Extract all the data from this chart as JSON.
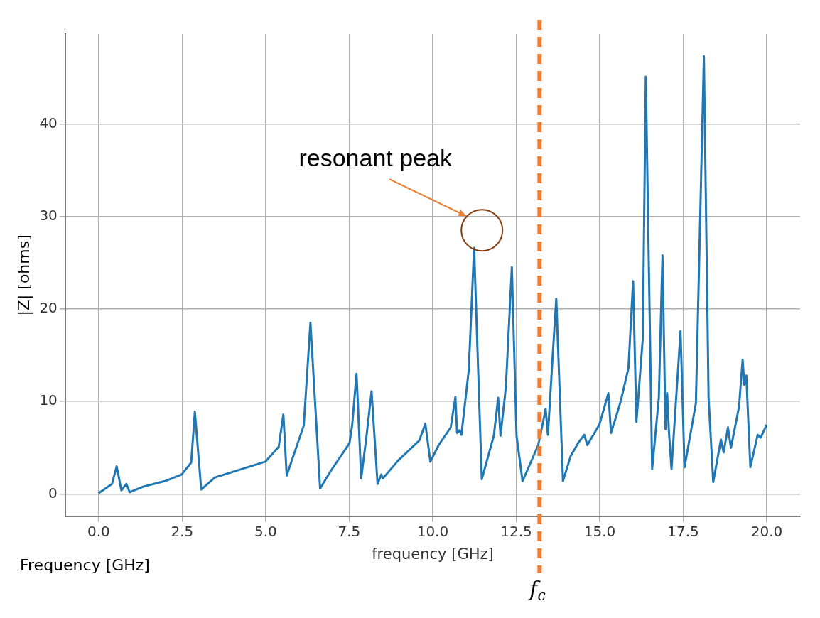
{
  "chart_data": {
    "type": "line",
    "xlabel": "frequency [GHz]",
    "ylabel": "|Z| [ohms]",
    "xlim": [
      -1.0,
      21.0
    ],
    "ylim": [
      -2.4,
      49.7
    ],
    "xticks": [
      {
        "value": 0,
        "label": "0.0"
      },
      {
        "value": 2.5,
        "label": "2.5"
      },
      {
        "value": 5,
        "label": "5.0"
      },
      {
        "value": 7.5,
        "label": "7.5"
      },
      {
        "value": 10,
        "label": "10.0"
      },
      {
        "value": 12.5,
        "label": "12.5"
      },
      {
        "value": 15,
        "label": "15.0"
      },
      {
        "value": 17.5,
        "label": "17.5"
      },
      {
        "value": 20,
        "label": "20.0"
      }
    ],
    "yticks": [
      0,
      10,
      20,
      30,
      40
    ],
    "grid": true,
    "legend": false,
    "marker": "none",
    "line_style": "solid",
    "series": [
      {
        "color": "#1f77b4",
        "x": [
          0.0,
          0.4,
          0.54,
          0.68,
          0.83,
          0.93,
          1.33,
          1.98,
          2.48,
          2.77,
          2.88,
          3.07,
          3.48,
          4.99,
          5.39,
          5.53,
          5.63,
          5.78,
          6.14,
          6.34,
          6.63,
          6.93,
          7.51,
          7.59,
          7.72,
          7.86,
          8.02,
          8.17,
          8.35,
          8.46,
          8.51,
          8.96,
          9.6,
          9.78,
          9.93,
          10.18,
          10.54,
          10.68,
          10.73,
          10.8,
          10.86,
          11.08,
          11.24,
          11.47,
          11.83,
          11.96,
          12.03,
          12.19,
          12.37,
          12.51,
          12.69,
          13.16,
          13.3,
          13.38,
          13.45,
          13.59,
          13.7,
          13.9,
          14.13,
          14.37,
          14.54,
          14.63,
          14.99,
          15.26,
          15.34,
          15.62,
          15.86,
          16.0,
          16.1,
          16.29,
          16.38,
          16.57,
          16.77,
          16.88,
          16.97,
          17.02,
          17.07,
          17.15,
          17.42,
          17.54,
          17.88,
          18.12,
          18.26,
          18.4,
          18.63,
          18.71,
          18.84,
          18.93,
          19.17,
          19.28,
          19.33,
          19.39,
          19.51,
          19.73,
          19.82,
          20.0
        ],
        "values": [
          0.1,
          1.1,
          3.0,
          0.4,
          1.1,
          0.2,
          0.8,
          1.4,
          2.1,
          3.4,
          8.9,
          0.5,
          1.8,
          3.5,
          5.1,
          8.6,
          2.0,
          3.6,
          7.4,
          18.5,
          0.6,
          2.4,
          5.5,
          7.45,
          13.0,
          1.7,
          6.3,
          11.1,
          1.1,
          2.1,
          1.7,
          3.6,
          5.8,
          7.6,
          3.5,
          5.3,
          7.2,
          10.5,
          6.6,
          6.9,
          6.4,
          13.4,
          26.6,
          1.6,
          6.3,
          10.4,
          6.3,
          11.5,
          24.5,
          6.3,
          1.4,
          5.3,
          7.7,
          9.2,
          6.4,
          14.8,
          21.1,
          1.4,
          4.1,
          5.6,
          6.4,
          5.3,
          7.5,
          10.9,
          6.6,
          9.9,
          13.6,
          23.0,
          7.8,
          16.8,
          45.1,
          2.7,
          10.4,
          25.8,
          7.0,
          10.9,
          6.9,
          2.7,
          17.6,
          2.9,
          9.8,
          47.3,
          10.4,
          1.3,
          5.9,
          4.5,
          7.2,
          5.0,
          9.4,
          14.5,
          11.8,
          12.8,
          2.9,
          6.4,
          6.1,
          7.5
        ]
      }
    ],
    "ref_lines": [
      {
        "axis": "x",
        "value": 13.2,
        "label": "f$_{c}$",
        "color": "#ed7d31",
        "line_style": "dashed"
      }
    ],
    "annotations": [
      "resonant peak",
      "Frequency [GHz]"
    ]
  }
}
